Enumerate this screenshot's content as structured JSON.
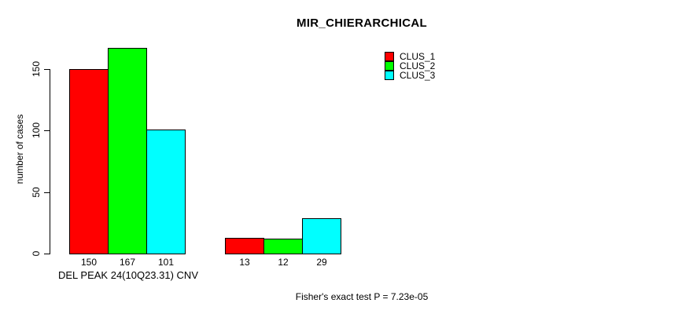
{
  "figure": {
    "background": "#ffffff",
    "border_color": "#000000",
    "text_color": "#000000"
  },
  "chart_data": {
    "type": "bar",
    "title": "MIR_CHIERARCHICAL",
    "ylabel": "number of cases",
    "xlabel": "DEL PEAK 24(10Q23.31) CNV",
    "ylim": [
      0,
      167
    ],
    "ytick_values": [
      0,
      50,
      100,
      150
    ],
    "yticks": [
      "0",
      "50",
      "100",
      "150"
    ],
    "grid": false,
    "legend_position": "top-right",
    "series": [
      {
        "name": "CLUS_1",
        "color": "#ff0000",
        "values": [
          150,
          13
        ]
      },
      {
        "name": "CLUS_2",
        "color": "#00ff00",
        "values": [
          167,
          12
        ]
      },
      {
        "name": "CLUS_3",
        "color": "#00ffff",
        "values": [
          101,
          29
        ]
      }
    ],
    "bar_value_labels": [
      [
        "150",
        "167",
        "101"
      ],
      [
        "13",
        "12",
        "29"
      ]
    ],
    "annotation": "Fisher's exact test P = 7.23e-05"
  }
}
